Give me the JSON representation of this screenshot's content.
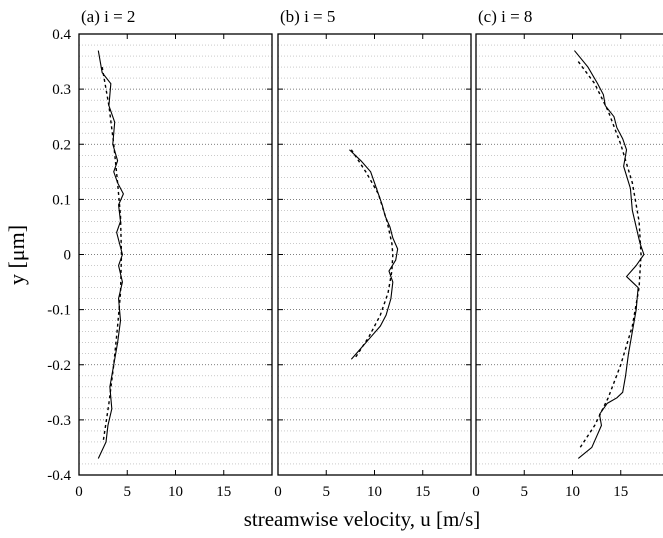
{
  "chart_data": {
    "type": "line",
    "xlabel": "streamwise velocity,  u [m/s]",
    "ylabel": "y [μm]",
    "xlim": [
      0,
      20
    ],
    "ylim": [
      -0.4,
      0.4
    ],
    "x_ticks": [
      "0",
      "5",
      "10",
      "15"
    ],
    "y_ticks": [
      "0.4",
      "0.3",
      "0.2",
      "0.1",
      "0",
      "-0.1",
      "-0.2",
      "-0.3",
      "-0.4"
    ],
    "grid": "horizontal dotted",
    "panels": [
      {
        "title": "(a) i = 2",
        "series": [
          {
            "style": "solid",
            "points": [
              [
                2.0,
                0.37
              ],
              [
                2.4,
                0.33
              ],
              [
                3.3,
                0.31
              ],
              [
                3.1,
                0.27
              ],
              [
                3.7,
                0.24
              ],
              [
                3.5,
                0.2
              ],
              [
                4.0,
                0.17
              ],
              [
                3.6,
                0.15
              ],
              [
                4.0,
                0.13
              ],
              [
                4.6,
                0.11
              ],
              [
                4.1,
                0.09
              ],
              [
                4.3,
                0.06
              ],
              [
                3.9,
                0.04
              ],
              [
                4.2,
                0.02
              ],
              [
                4.5,
                0.0
              ],
              [
                4.1,
                -0.02
              ],
              [
                4.5,
                -0.05
              ],
              [
                4.1,
                -0.08
              ],
              [
                4.3,
                -0.12
              ],
              [
                4.0,
                -0.16
              ],
              [
                3.6,
                -0.2
              ],
              [
                3.2,
                -0.24
              ],
              [
                3.4,
                -0.28
              ],
              [
                3.0,
                -0.31
              ],
              [
                2.8,
                -0.34
              ],
              [
                2.0,
                -0.37
              ]
            ]
          },
          {
            "style": "dashed",
            "points": [
              [
                2.4,
                0.34
              ],
              [
                3.1,
                0.27
              ],
              [
                3.6,
                0.2
              ],
              [
                4.0,
                0.13
              ],
              [
                4.3,
                0.07
              ],
              [
                4.4,
                0.0
              ],
              [
                4.3,
                -0.07
              ],
              [
                4.0,
                -0.13
              ],
              [
                3.6,
                -0.2
              ],
              [
                3.1,
                -0.27
              ],
              [
                2.5,
                -0.34
              ]
            ]
          }
        ]
      },
      {
        "title": "(b) i = 5",
        "series": [
          {
            "style": "solid",
            "points": [
              [
                7.4,
                0.19
              ],
              [
                8.6,
                0.17
              ],
              [
                9.6,
                0.15
              ],
              [
                10.2,
                0.12
              ],
              [
                10.8,
                0.09
              ],
              [
                11.1,
                0.07
              ],
              [
                11.6,
                0.05
              ],
              [
                11.9,
                0.03
              ],
              [
                12.4,
                0.01
              ],
              [
                12.2,
                -0.01
              ],
              [
                11.5,
                -0.03
              ],
              [
                11.9,
                -0.05
              ],
              [
                11.7,
                -0.08
              ],
              [
                11.2,
                -0.11
              ],
              [
                10.6,
                -0.13
              ],
              [
                9.6,
                -0.15
              ],
              [
                8.6,
                -0.17
              ],
              [
                7.6,
                -0.19
              ]
            ]
          },
          {
            "style": "dashed",
            "points": [
              [
                7.6,
                0.19
              ],
              [
                9.1,
                0.15
              ],
              [
                10.4,
                0.11
              ],
              [
                11.3,
                0.06
              ],
              [
                11.8,
                0.02
              ],
              [
                11.9,
                0.0
              ],
              [
                11.8,
                -0.03
              ],
              [
                11.4,
                -0.07
              ],
              [
                10.6,
                -0.11
              ],
              [
                9.4,
                -0.15
              ],
              [
                7.9,
                -0.19
              ]
            ]
          }
        ]
      },
      {
        "title": "(c) i = 8",
        "series": [
          {
            "style": "solid",
            "points": [
              [
                10.2,
                0.37
              ],
              [
                11.6,
                0.34
              ],
              [
                12.6,
                0.31
              ],
              [
                13.2,
                0.29
              ],
              [
                13.4,
                0.27
              ],
              [
                14.3,
                0.25
              ],
              [
                14.6,
                0.23
              ],
              [
                15.2,
                0.21
              ],
              [
                15.6,
                0.19
              ],
              [
                15.3,
                0.16
              ],
              [
                16.0,
                0.12
              ],
              [
                16.2,
                0.08
              ],
              [
                16.6,
                0.05
              ],
              [
                17.0,
                0.02
              ],
              [
                17.4,
                0.0
              ],
              [
                16.6,
                -0.02
              ],
              [
                15.6,
                -0.04
              ],
              [
                16.8,
                -0.06
              ],
              [
                16.6,
                -0.1
              ],
              [
                16.2,
                -0.14
              ],
              [
                15.8,
                -0.18
              ],
              [
                15.5,
                -0.22
              ],
              [
                15.2,
                -0.25
              ],
              [
                14.6,
                -0.26
              ],
              [
                13.6,
                -0.27
              ],
              [
                12.8,
                -0.29
              ],
              [
                13.0,
                -0.31
              ],
              [
                12.5,
                -0.33
              ],
              [
                12.0,
                -0.35
              ],
              [
                10.6,
                -0.37
              ]
            ]
          },
          {
            "style": "dashed",
            "points": [
              [
                10.6,
                0.35
              ],
              [
                12.3,
                0.31
              ],
              [
                13.7,
                0.26
              ],
              [
                15.0,
                0.2
              ],
              [
                16.2,
                0.13
              ],
              [
                16.9,
                0.06
              ],
              [
                17.1,
                0.0
              ],
              [
                16.9,
                -0.06
              ],
              [
                16.2,
                -0.13
              ],
              [
                15.0,
                -0.2
              ],
              [
                13.7,
                -0.26
              ],
              [
                12.3,
                -0.31
              ],
              [
                10.8,
                -0.35
              ]
            ]
          }
        ]
      }
    ]
  }
}
